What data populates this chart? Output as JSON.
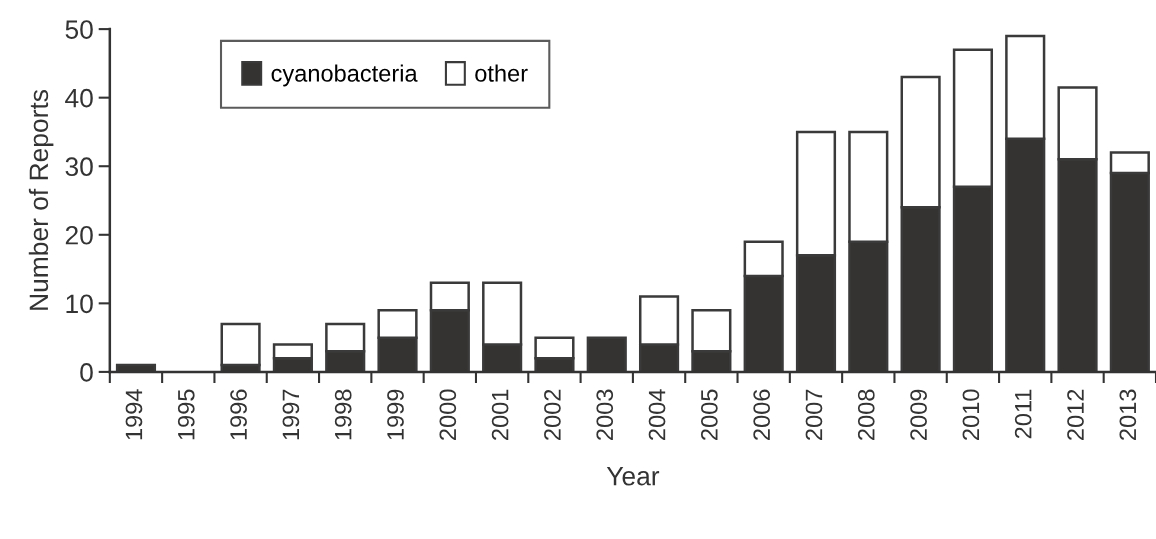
{
  "chart_data": {
    "type": "bar",
    "stacked": true,
    "xlabel": "Year",
    "ylabel": "Number of Reports",
    "categories": [
      "1994",
      "1995",
      "1996",
      "1997",
      "1998",
      "1999",
      "2000",
      "2001",
      "2002",
      "2003",
      "2004",
      "2005",
      "2006",
      "2007",
      "2008",
      "2009",
      "2010",
      "2011",
      "2012",
      "2013"
    ],
    "series": [
      {
        "name": "cyanobacteria",
        "color": "#353331",
        "values": [
          1,
          0,
          1,
          2,
          3,
          5,
          9,
          4,
          2,
          5,
          4,
          3,
          14,
          17,
          19,
          24,
          27,
          34,
          31,
          29
        ]
      },
      {
        "name": "other",
        "color": "#ffffff",
        "values": [
          0,
          0,
          6,
          2,
          4,
          4,
          4,
          9,
          3,
          0,
          7,
          6,
          5,
          18,
          16,
          19,
          20,
          15,
          10.5,
          3
        ]
      }
    ],
    "ylim": [
      0,
      50
    ],
    "yticks": [
      0,
      10,
      20,
      30,
      40,
      50
    ],
    "grid": false,
    "legend": "top left"
  }
}
